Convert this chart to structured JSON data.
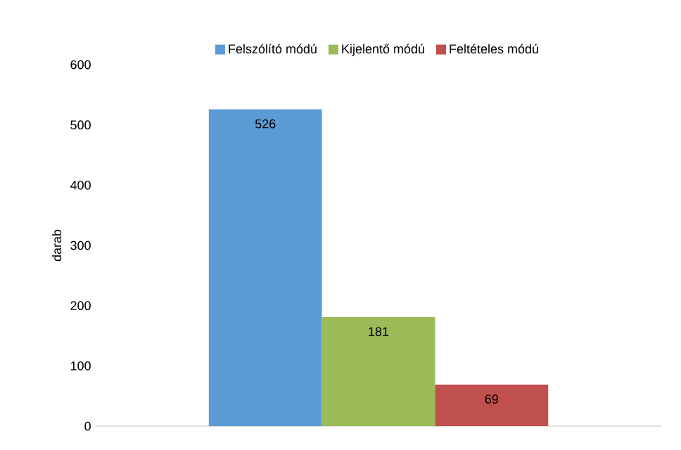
{
  "chart_data": {
    "type": "bar",
    "categories": [
      null
    ],
    "ylabel": "darab",
    "ylim": [
      0,
      600
    ],
    "yticks": [
      0,
      100,
      200,
      300,
      400,
      500,
      600
    ],
    "legend": "top",
    "data_labels": true,
    "grid": false,
    "series": [
      {
        "name": "Felszólító módú",
        "color": "#5b9bd5",
        "values": [
          526
        ]
      },
      {
        "name": "Kijelentő módú",
        "color": "#9bbb59",
        "values": [
          181
        ]
      },
      {
        "name": "Feltételes módú",
        "color": "#c0504d",
        "values": [
          69
        ]
      }
    ]
  }
}
